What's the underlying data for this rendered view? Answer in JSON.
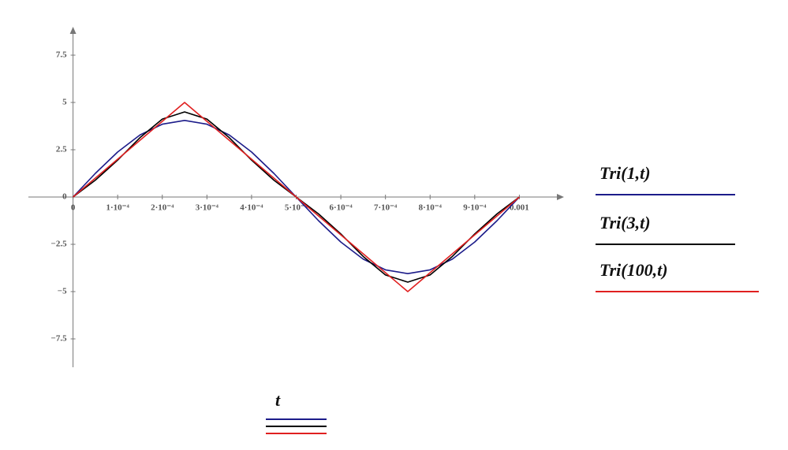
{
  "chart_data": {
    "type": "line",
    "x_label": "t",
    "x": [
      0,
      5e-05,
      0.0001,
      0.00015,
      0.0002,
      0.00025,
      0.0003,
      0.00035,
      0.0004,
      0.00045,
      0.0005,
      0.00055,
      0.0006,
      0.00065,
      0.0007,
      0.00075,
      0.0008,
      0.00085,
      0.0009,
      0.00095,
      0.001
    ],
    "series": [
      {
        "name": "Tri(1,t)",
        "color": "#1c1c8a",
        "values": [
          0,
          1.25,
          2.38,
          3.28,
          3.85,
          4.05,
          3.85,
          3.28,
          2.38,
          1.25,
          0,
          -1.25,
          -2.38,
          -3.28,
          -3.85,
          -4.05,
          -3.85,
          -3.28,
          -2.38,
          -1.25,
          0
        ]
      },
      {
        "name": "Tri(3,t)",
        "color": "#000000",
        "values": [
          0,
          0.89,
          1.95,
          3.14,
          4.12,
          4.5,
          4.12,
          3.14,
          1.95,
          0.89,
          0,
          -0.89,
          -1.95,
          -3.14,
          -4.12,
          -4.5,
          -4.12,
          -3.14,
          -1.95,
          -0.89,
          0
        ]
      },
      {
        "name": "Tri(100,t)",
        "color": "#e02020",
        "values": [
          0,
          1,
          2,
          3,
          4,
          5,
          4,
          3,
          2,
          1,
          0,
          -1,
          -2,
          -3,
          -4,
          -5,
          -4,
          -3,
          -2,
          -1,
          0
        ]
      }
    ],
    "xlim": [
      -0.0001,
      0.0011
    ],
    "ylim": [
      -9,
      9
    ],
    "xticks": [
      0,
      {
        "value": 0.0001,
        "label": "1·10⁻⁴"
      },
      {
        "value": 0.0002,
        "label": "2·10⁻⁴"
      },
      {
        "value": 0.0003,
        "label": "3·10⁻⁴"
      },
      {
        "value": 0.0004,
        "label": "4·10⁻⁴"
      },
      {
        "value": 0.0005,
        "label": "5·10⁻⁴"
      },
      {
        "value": 0.0006,
        "label": "6·10⁻⁴"
      },
      {
        "value": 0.0007,
        "label": "7·10⁻⁴"
      },
      {
        "value": 0.0008,
        "label": "8·10⁻⁴"
      },
      {
        "value": 0.0009,
        "label": "9·10⁻⁴"
      },
      0.001
    ],
    "yticks": [
      7.5,
      5,
      2.5,
      0,
      {
        "value": -2.5,
        "label": "−2.5"
      },
      {
        "value": -5,
        "label": "−5"
      },
      {
        "value": -7.5,
        "label": "−7.5"
      }
    ],
    "grid": false
  }
}
